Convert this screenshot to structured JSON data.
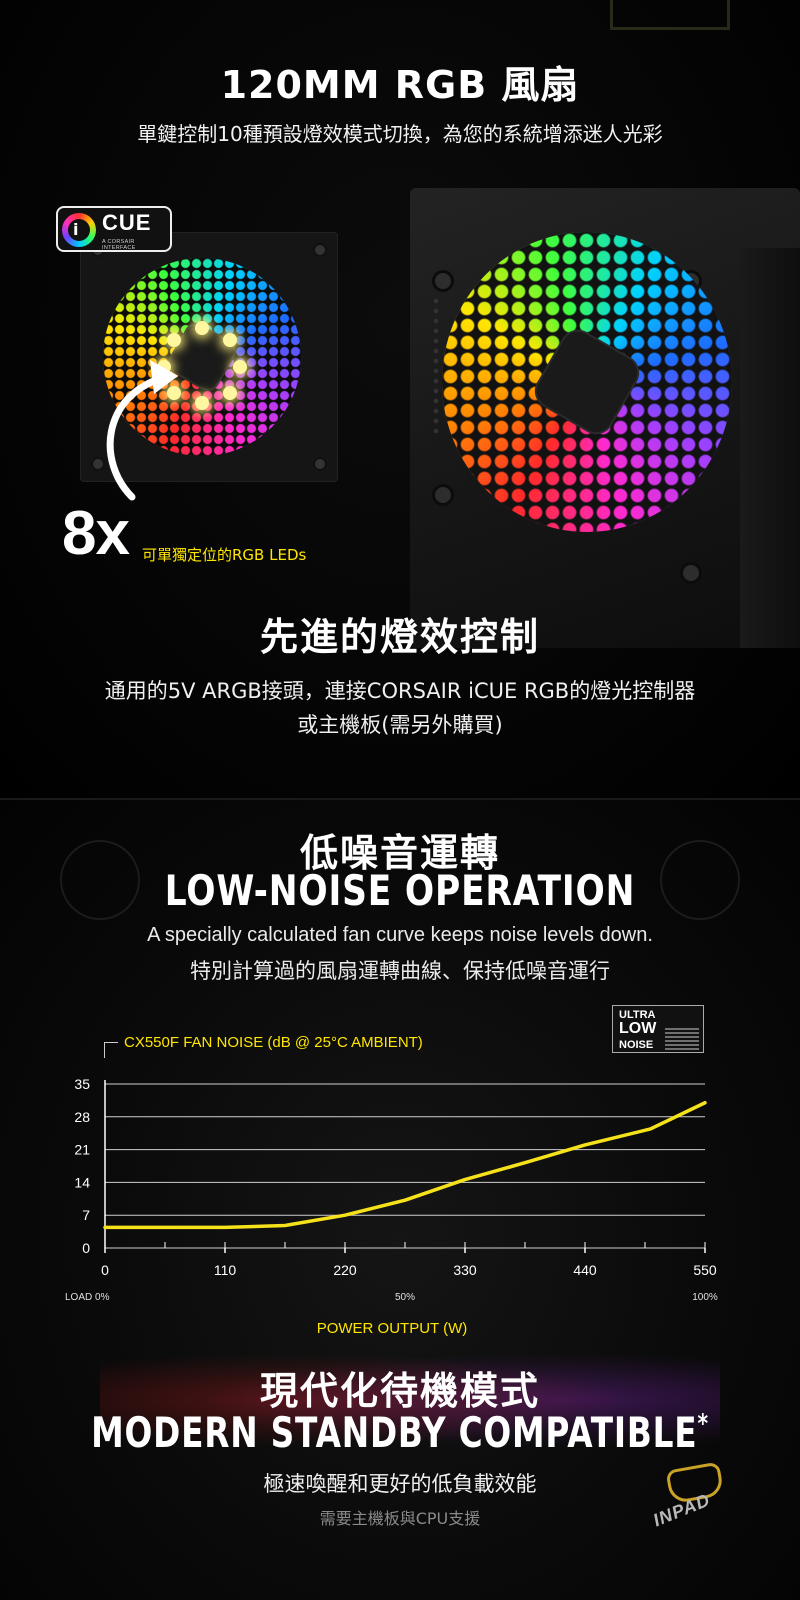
{
  "sections": {
    "rgb_fan": {
      "title": "120MM RGB 風扇",
      "subtitle": "單鍵控制10種預設燈效模式切換，為您的系統增添迷人光彩",
      "cue_badge": {
        "text": "CUE",
        "letter": "i",
        "sub": "A CORSAIR INTERFACE"
      },
      "leds_count": "8x",
      "leds_label": "可單獨定位的RGB LEDs"
    },
    "lighting": {
      "title": "先進的燈效控制",
      "line1": "通用的5V ARGB接頭，連接CORSAIR iCUE RGB的燈光控制器",
      "line2": "或主機板(需另外購買)"
    },
    "low_noise": {
      "title_zh": "低噪音運轉",
      "title_en": "LOW-NOISE OPERATION",
      "desc_en": "A specially calculated fan curve keeps noise levels down.",
      "desc_zh": "特別計算過的風扇運轉曲線、保持低噪音運行",
      "badge": {
        "line1": "ULTRA",
        "line2": "LOW",
        "line3": "NOISE"
      }
    },
    "standby": {
      "title_zh": "現代化待機模式",
      "title_en": "MODERN STANDBY COMPATIBLE",
      "asterisk": "*",
      "desc": "極速喚醒和更好的低負載效能",
      "note": "需要主機板與CPU支援"
    }
  },
  "watermark": {
    "text": "INPAD",
    "icon": "owl-logo-icon"
  },
  "colors": {
    "accent": "#ffe600",
    "line": "#f5e21a",
    "grid": "#cfcfcf"
  },
  "chart_data": {
    "type": "line",
    "title": "CX550F FAN NOISE (dB @ 25°C AMBIENT)",
    "xlabel": "POWER OUTPUT (W)",
    "ylabel": "",
    "xlim": [
      0,
      550
    ],
    "ylim": [
      0,
      35
    ],
    "x_ticks": [
      "0",
      "110",
      "220",
      "330",
      "440",
      "550"
    ],
    "y_ticks": [
      "0",
      "7",
      "14",
      "21",
      "28",
      "35"
    ],
    "load_labels": [
      "LOAD 0%",
      "50%",
      "100%"
    ],
    "load_prefix": "LOAD",
    "series": [
      {
        "x": [
          0,
          110,
          165,
          220,
          275,
          330,
          385,
          440,
          500,
          550
        ],
        "y": [
          4.4,
          4.4,
          4.8,
          7,
          10.2,
          14.6,
          18.2,
          22,
          25.4,
          31
        ]
      }
    ]
  }
}
